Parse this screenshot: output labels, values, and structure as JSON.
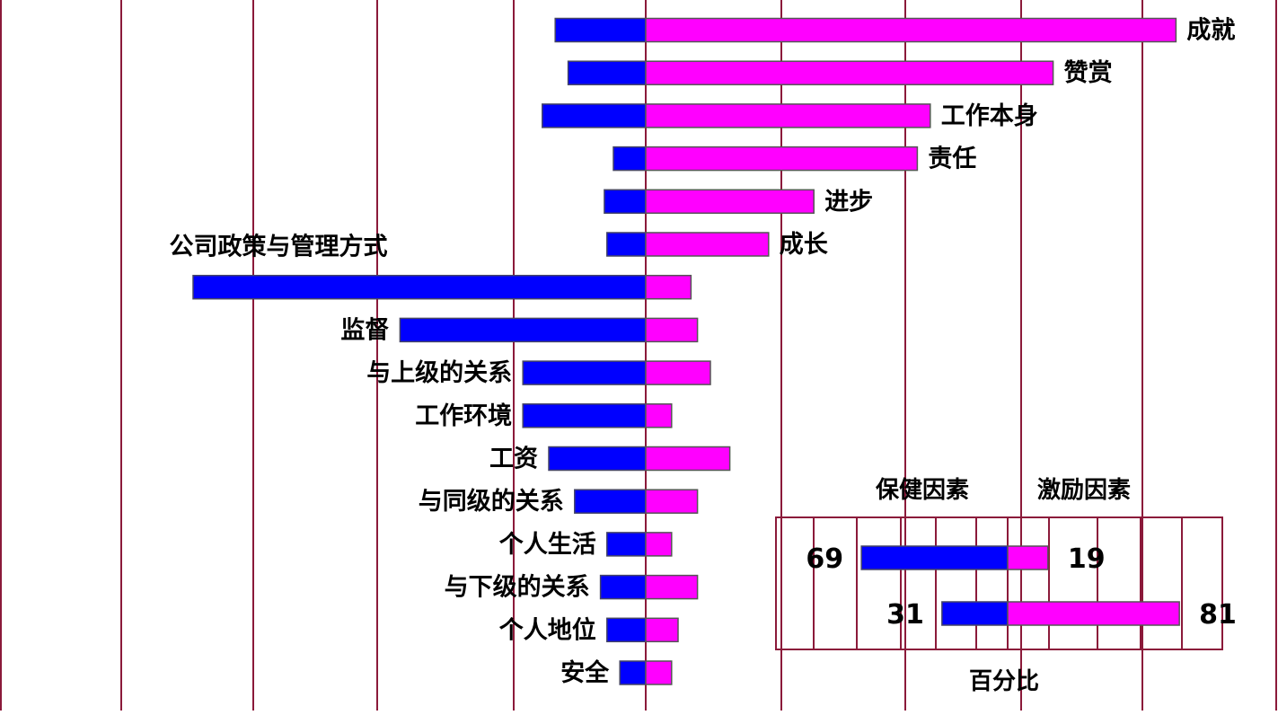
{
  "colors": {
    "hygiene": "#0000ff",
    "motivator": "#ff00ff",
    "gridline": "#8b1a3a",
    "frame": "#8b1a3a",
    "text": "#000000"
  },
  "chart_data": [
    {
      "type": "bar",
      "orientation": "horizontal-diverging",
      "categories": [
        "成就",
        "赞赏",
        "工作本身",
        "责任",
        "进步",
        "成长",
        "公司政策与管理方式",
        "监督",
        "与上级的关系",
        "工作环境",
        "工资",
        "与同级的关系",
        "个人生活",
        "与下级的关系",
        "个人地位",
        "安全"
      ],
      "series": [
        {
          "color": "#0000ff",
          "direction": "left",
          "values": [
            7,
            6,
            8,
            2.5,
            3.2,
            3,
            35,
            19,
            9.5,
            9.5,
            7.5,
            5.5,
            3,
            3.5,
            3,
            2
          ]
        },
        {
          "color": "#ff00ff",
          "direction": "right",
          "values": [
            41,
            31.5,
            22,
            21,
            13,
            9.5,
            3.5,
            4,
            5,
            2,
            6.5,
            4,
            2,
            4,
            2.5,
            2
          ]
        }
      ],
      "grid": true
    },
    {
      "type": "bar",
      "orientation": "horizontal-stacked",
      "legend": [
        "保健因素",
        "激励因素"
      ],
      "xlabel": "百分比",
      "rows": [
        {
          "hygiene": 69,
          "motivator": 19,
          "hygiene_label": "69",
          "motivator_label": "19"
        },
        {
          "hygiene": 31,
          "motivator": 81,
          "hygiene_label": "31",
          "motivator_label": "81"
        }
      ],
      "grid": true
    }
  ]
}
